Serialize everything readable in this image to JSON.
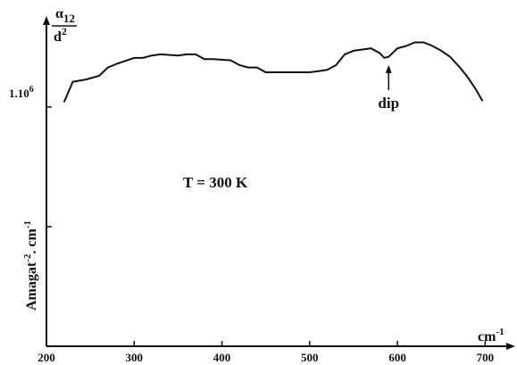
{
  "chart_data": {
    "type": "line",
    "title": "",
    "xlabel": "cm",
    "xlabel_sup": "-1",
    "ylabel": "Amagat",
    "ylabel_sup": "-2",
    "ylabel_unit": ". cm",
    "ylabel_unit_sup": "-1",
    "ylabel_top_alpha": "α",
    "ylabel_top_sub": "12",
    "ylabel_top_den": "d",
    "ylabel_top_den_sup": "2",
    "xlim": [
      200,
      720
    ],
    "x_ticks": [
      200,
      300,
      400,
      500,
      600,
      700
    ],
    "x_tick_labels": [
      "200",
      "300",
      "400",
      "500",
      "600",
      "700"
    ],
    "ylim": [
      0,
      1.38
    ],
    "y_tick_main": "1.10",
    "y_tick_main_sup": "6",
    "y_tick_main_value": 1.0,
    "y_ticks_minor": [
      0.5
    ],
    "annotations": [
      {
        "text": "dip",
        "x": 590,
        "arrow_to_y": 1.205
      },
      {
        "text": "T = 300 K"
      }
    ],
    "series": [
      {
        "x": [
          220,
          230,
          245,
          260,
          270,
          280,
          300,
          310,
          320,
          330,
          350,
          360,
          370,
          380,
          390,
          410,
          420,
          430,
          440,
          450,
          460,
          470,
          480,
          490,
          500,
          510,
          520,
          530,
          540,
          550,
          560,
          570,
          580,
          585,
          590,
          600,
          610,
          620,
          630,
          640,
          650,
          660,
          670,
          680,
          690,
          697
        ],
        "y": [
          1.02,
          1.105,
          1.115,
          1.13,
          1.165,
          1.18,
          1.205,
          1.205,
          1.215,
          1.22,
          1.215,
          1.22,
          1.22,
          1.2,
          1.2,
          1.195,
          1.175,
          1.165,
          1.165,
          1.145,
          1.145,
          1.145,
          1.145,
          1.145,
          1.145,
          1.15,
          1.155,
          1.175,
          1.22,
          1.235,
          1.24,
          1.245,
          1.225,
          1.205,
          1.21,
          1.245,
          1.255,
          1.27,
          1.27,
          1.255,
          1.235,
          1.21,
          1.17,
          1.125,
          1.07,
          1.025
        ]
      }
    ]
  }
}
